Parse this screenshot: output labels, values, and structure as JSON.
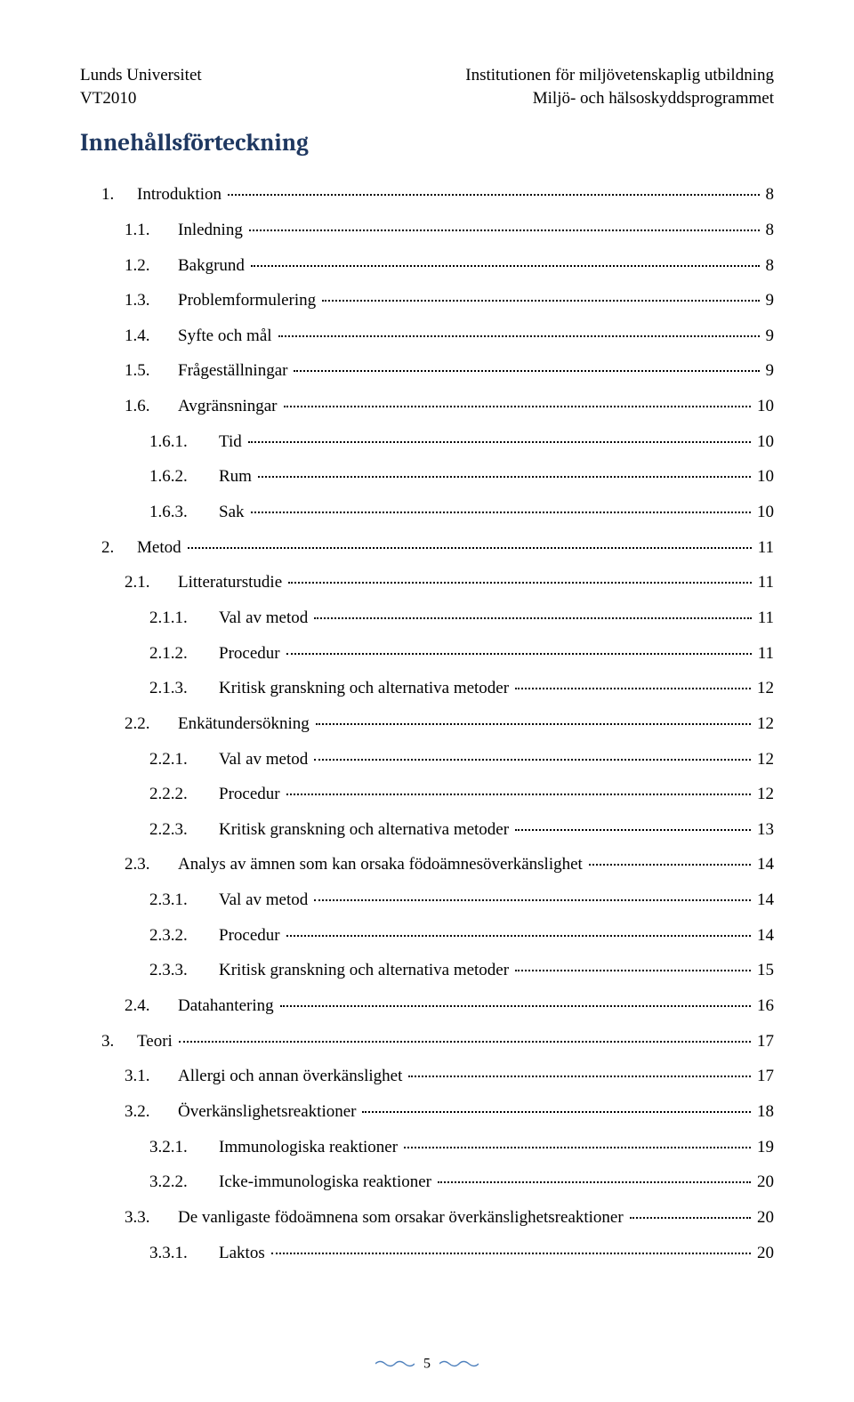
{
  "header": {
    "left_line1": "Lunds Universitet",
    "left_line2": "VT2010",
    "right_line1": "Institutionen för miljövetenskaplig utbildning",
    "right_line2": "Miljö- och hälsoskyddsprogrammet"
  },
  "title": "Innehållsförteckning",
  "title_color": "#1f3861",
  "toc": [
    {
      "level": 0,
      "num": "1.",
      "text": "Introduktion",
      "page": "8"
    },
    {
      "level": 1,
      "num": "1.1.",
      "text": "Inledning",
      "page": "8"
    },
    {
      "level": 1,
      "num": "1.2.",
      "text": "Bakgrund",
      "page": "8"
    },
    {
      "level": 1,
      "num": "1.3.",
      "text": "Problemformulering",
      "page": "9"
    },
    {
      "level": 1,
      "num": "1.4.",
      "text": "Syfte och mål",
      "page": "9"
    },
    {
      "level": 1,
      "num": "1.5.",
      "text": "Frågeställningar",
      "page": "9"
    },
    {
      "level": 1,
      "num": "1.6.",
      "text": "Avgränsningar",
      "page": "10"
    },
    {
      "level": 2,
      "num": "1.6.1.",
      "text": "Tid",
      "page": "10"
    },
    {
      "level": 2,
      "num": "1.6.2.",
      "text": "Rum",
      "page": "10"
    },
    {
      "level": 2,
      "num": "1.6.3.",
      "text": "Sak",
      "page": "10"
    },
    {
      "level": 0,
      "num": "2.",
      "text": "Metod",
      "page": "11"
    },
    {
      "level": 1,
      "num": "2.1.",
      "text": "Litteraturstudie",
      "page": "11"
    },
    {
      "level": 2,
      "num": "2.1.1.",
      "text": "Val av metod",
      "page": "11"
    },
    {
      "level": 2,
      "num": "2.1.2.",
      "text": "Procedur",
      "page": "11"
    },
    {
      "level": 2,
      "num": "2.1.3.",
      "text": "Kritisk granskning och alternativa metoder",
      "page": "12"
    },
    {
      "level": 1,
      "num": "2.2.",
      "text": "Enkätundersökning",
      "page": "12"
    },
    {
      "level": 2,
      "num": "2.2.1.",
      "text": "Val av metod",
      "page": "12"
    },
    {
      "level": 2,
      "num": "2.2.2.",
      "text": "Procedur",
      "page": "12"
    },
    {
      "level": 2,
      "num": "2.2.3.",
      "text": "Kritisk granskning och alternativa metoder",
      "page": "13"
    },
    {
      "level": 1,
      "num": "2.3.",
      "text": "Analys av ämnen som kan orsaka födoämnesöverkänslighet",
      "page": "14"
    },
    {
      "level": 2,
      "num": "2.3.1.",
      "text": "Val av metod",
      "page": "14"
    },
    {
      "level": 2,
      "num": "2.3.2.",
      "text": "Procedur",
      "page": "14"
    },
    {
      "level": 2,
      "num": "2.3.3.",
      "text": "Kritisk granskning och alternativa metoder",
      "page": "15"
    },
    {
      "level": 1,
      "num": "2.4.",
      "text": "Datahantering",
      "page": "16"
    },
    {
      "level": 0,
      "num": "3.",
      "text": "Teori",
      "page": "17"
    },
    {
      "level": 1,
      "num": "3.1.",
      "text": "Allergi och annan överkänslighet",
      "page": "17"
    },
    {
      "level": 1,
      "num": "3.2.",
      "text": "Överkänslighetsreaktioner",
      "page": "18"
    },
    {
      "level": 2,
      "num": "3.2.1.",
      "text": "Immunologiska reaktioner",
      "page": "19"
    },
    {
      "level": 2,
      "num": "3.2.2.",
      "text": "Icke-immunologiska reaktioner",
      "page": "20"
    },
    {
      "level": 1,
      "num": "3.3.",
      "text": "De vanligaste födoämnena som orsakar överkänslighetsreaktioner",
      "page": "20"
    },
    {
      "level": 2,
      "num": "3.3.1.",
      "text": "Laktos",
      "page": "20"
    }
  ],
  "footer": {
    "page_number": "5",
    "line_color": "#4f81bd"
  }
}
